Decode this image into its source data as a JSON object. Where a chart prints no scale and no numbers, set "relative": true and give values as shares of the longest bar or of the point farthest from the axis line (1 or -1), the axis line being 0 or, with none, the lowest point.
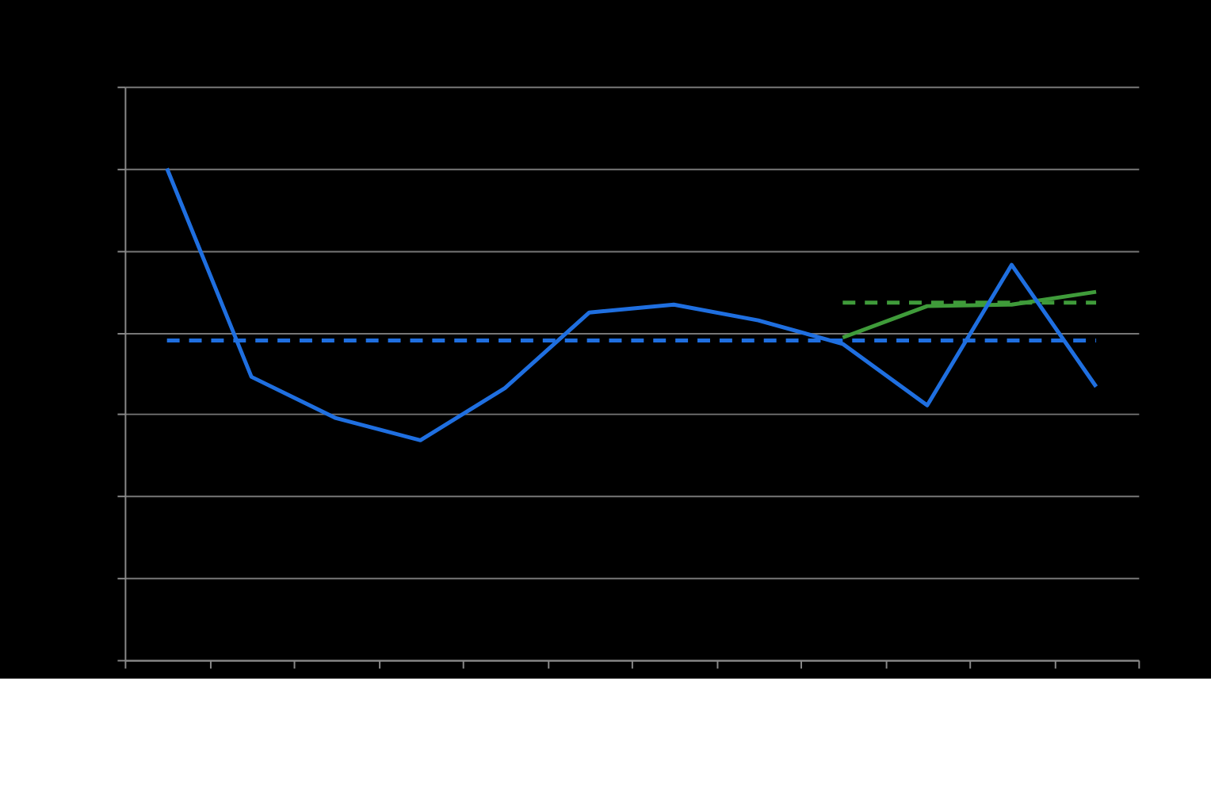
{
  "chart_data": {
    "type": "line",
    "relative": true,
    "categories": [
      null,
      null,
      null,
      null,
      null,
      null,
      null,
      null,
      null,
      null,
      null,
      null
    ],
    "series": [
      {
        "color": "#3f9b3a",
        "line_style": "solid",
        "values": [
          null,
          null,
          null,
          null,
          null,
          null,
          null,
          null,
          0.656,
          0.72,
          0.723,
          0.749
        ]
      },
      {
        "color": "#3f9b3a",
        "line_style": "dashed",
        "values": [
          null,
          null,
          null,
          null,
          null,
          null,
          null,
          null,
          0.727,
          0.727,
          0.727,
          0.727
        ]
      },
      {
        "color": "#1f6fe0",
        "line_style": "solid",
        "values": [
          1,
          0.576,
          0.492,
          0.447,
          0.553,
          0.707,
          0.723,
          0.691,
          0.643,
          0.518,
          0.804,
          0.556
        ]
      },
      {
        "color": "#1f6fe0",
        "line_style": "dashed",
        "values": [
          0.65,
          0.65,
          0.65,
          0.65,
          0.65,
          0.65,
          0.65,
          0.65,
          0.65,
          0.65,
          0.65,
          0.65
        ]
      }
    ],
    "grid": "y",
    "tick_labels": false
  }
}
